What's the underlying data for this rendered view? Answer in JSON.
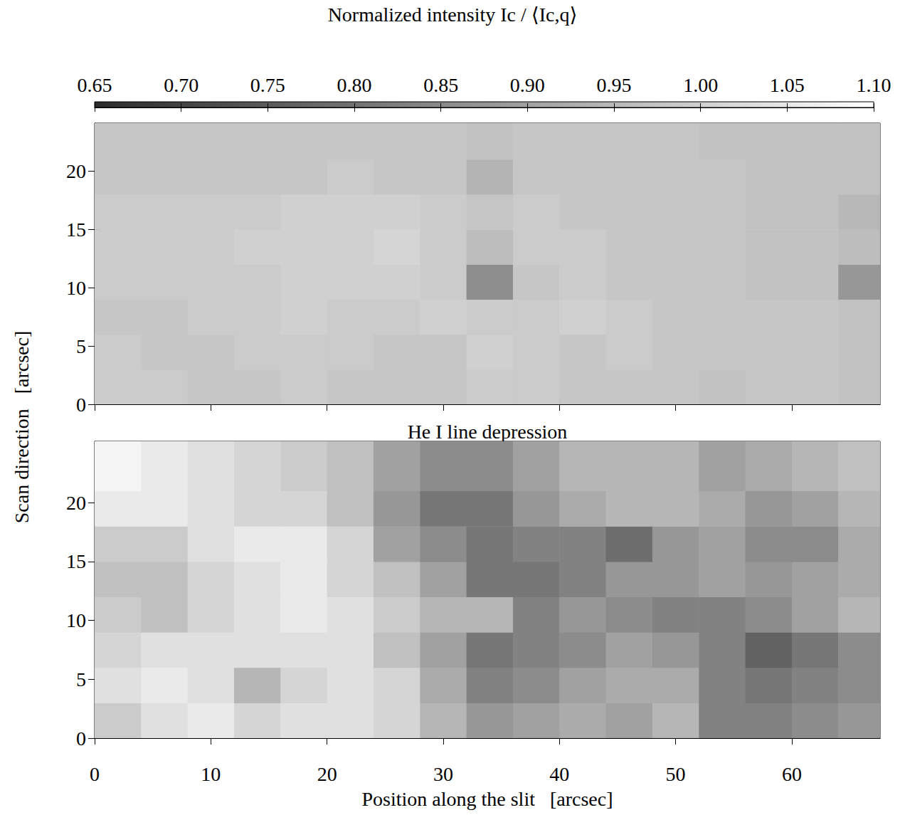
{
  "chart_data": [
    {
      "type": "heatmap",
      "title": "Normalized intensity Ic / ⟨Ic,q⟩",
      "ylabel": "Scan direction   [arcsec]",
      "tick_labels": "y",
      "xlim": [
        0,
        67.6
      ],
      "ylim": [
        0,
        24.1
      ],
      "xticks": [
        0,
        10,
        20,
        30,
        40,
        50,
        60
      ],
      "yticks": [
        0,
        5,
        10,
        15,
        20
      ],
      "x_edges": [
        0,
        4,
        8,
        12,
        16,
        20,
        24,
        28,
        32,
        36,
        40,
        44,
        48,
        52,
        56,
        60,
        64,
        67.6
      ],
      "y_edges": [
        0,
        3,
        6,
        9,
        12,
        15,
        18,
        21,
        24.1
      ],
      "values": [
        [
          0.99,
          0.99,
          0.98,
          0.98,
          0.99,
          0.98,
          0.98,
          0.98,
          0.99,
          0.99,
          0.98,
          0.98,
          0.98,
          0.97,
          0.98,
          0.98,
          0.97
        ],
        [
          0.99,
          0.98,
          0.98,
          0.99,
          0.99,
          0.99,
          0.98,
          0.98,
          1.0,
          0.99,
          0.98,
          0.99,
          0.98,
          0.98,
          0.98,
          0.98,
          0.97
        ],
        [
          0.98,
          0.98,
          0.99,
          0.99,
          1.0,
          0.99,
          0.99,
          1.0,
          0.99,
          0.99,
          1.0,
          0.99,
          0.98,
          0.98,
          0.98,
          0.98,
          0.97
        ],
        [
          0.99,
          0.99,
          0.99,
          0.99,
          1.0,
          1.0,
          1.0,
          0.99,
          0.86,
          0.98,
          0.99,
          0.98,
          0.98,
          0.98,
          0.97,
          0.97,
          0.88
        ],
        [
          0.99,
          0.99,
          0.99,
          1.0,
          1.0,
          1.0,
          1.01,
          0.99,
          0.96,
          0.99,
          0.99,
          0.98,
          0.98,
          0.98,
          0.97,
          0.97,
          0.96
        ],
        [
          0.99,
          0.99,
          0.99,
          0.99,
          1.0,
          1.0,
          1.0,
          0.99,
          0.98,
          0.99,
          0.98,
          0.98,
          0.98,
          0.98,
          0.97,
          0.97,
          0.95
        ],
        [
          0.98,
          0.98,
          0.98,
          0.98,
          0.98,
          0.99,
          0.98,
          0.98,
          0.94,
          0.98,
          0.98,
          0.98,
          0.98,
          0.98,
          0.97,
          0.97,
          0.97
        ],
        [
          0.98,
          0.98,
          0.98,
          0.98,
          0.98,
          0.98,
          0.98,
          0.98,
          0.97,
          0.98,
          0.98,
          0.98,
          0.98,
          0.97,
          0.97,
          0.97,
          0.97
        ]
      ],
      "colorbar": {
        "range": [
          0.65,
          1.1
        ],
        "ticks": [
          0.65,
          {
            "value": 0.7,
            "label": "0.70"
          },
          0.75,
          {
            "value": 0.8,
            "label": "0.80"
          },
          0.85,
          {
            "value": 0.9,
            "label": "0.90"
          },
          0.95,
          {
            "value": 1,
            "label": "1.00"
          },
          1.05,
          {
            "value": 1.1,
            "label": "1.10"
          }
        ]
      }
    },
    {
      "type": "heatmap",
      "title": "He I line depression",
      "xlabel": "Position along the slit   [arcsec]",
      "xlim": [
        0,
        67.6
      ],
      "ylim": [
        0,
        25.2
      ],
      "xticks": [
        0,
        10,
        20,
        30,
        40,
        50,
        60
      ],
      "yticks": [
        0,
        5,
        10,
        15,
        20
      ],
      "x_edges": [
        0,
        4,
        8,
        12,
        16,
        20,
        24,
        28,
        32,
        36,
        40,
        44,
        48,
        52,
        56,
        60,
        64,
        67.6
      ],
      "y_edges": [
        0,
        3,
        6,
        9,
        12,
        15,
        18,
        21,
        25.2
      ],
      "values": [
        [
          0.25,
          0.15,
          0.1,
          0.2,
          0.15,
          0.15,
          0.2,
          0.35,
          0.5,
          0.45,
          0.4,
          0.45,
          0.35,
          0.6,
          0.6,
          0.55,
          0.5
        ],
        [
          0.15,
          0.1,
          0.15,
          0.35,
          0.2,
          0.15,
          0.2,
          0.4,
          0.6,
          0.55,
          0.45,
          0.4,
          0.4,
          0.6,
          0.65,
          0.6,
          0.55
        ],
        [
          0.2,
          0.15,
          0.15,
          0.15,
          0.15,
          0.15,
          0.3,
          0.45,
          0.65,
          0.6,
          0.55,
          0.45,
          0.5,
          0.6,
          0.75,
          0.65,
          0.55
        ],
        [
          0.25,
          0.3,
          0.2,
          0.15,
          0.1,
          0.15,
          0.25,
          0.35,
          0.35,
          0.6,
          0.5,
          0.55,
          0.6,
          0.6,
          0.55,
          0.45,
          0.35
        ],
        [
          0.3,
          0.3,
          0.2,
          0.15,
          0.1,
          0.2,
          0.3,
          0.45,
          0.65,
          0.65,
          0.6,
          0.5,
          0.5,
          0.45,
          0.5,
          0.45,
          0.4
        ],
        [
          0.25,
          0.25,
          0.15,
          0.1,
          0.1,
          0.2,
          0.45,
          0.55,
          0.65,
          0.6,
          0.6,
          0.7,
          0.5,
          0.45,
          0.55,
          0.55,
          0.4
        ],
        [
          0.1,
          0.1,
          0.15,
          0.2,
          0.2,
          0.3,
          0.5,
          0.65,
          0.65,
          0.5,
          0.4,
          0.35,
          0.35,
          0.4,
          0.5,
          0.45,
          0.35
        ],
        [
          0.05,
          0.1,
          0.15,
          0.2,
          0.25,
          0.3,
          0.45,
          0.55,
          0.55,
          0.45,
          0.35,
          0.35,
          0.35,
          0.45,
          0.4,
          0.35,
          0.3
        ]
      ],
      "color_range": [
        0,
        1
      ]
    }
  ]
}
